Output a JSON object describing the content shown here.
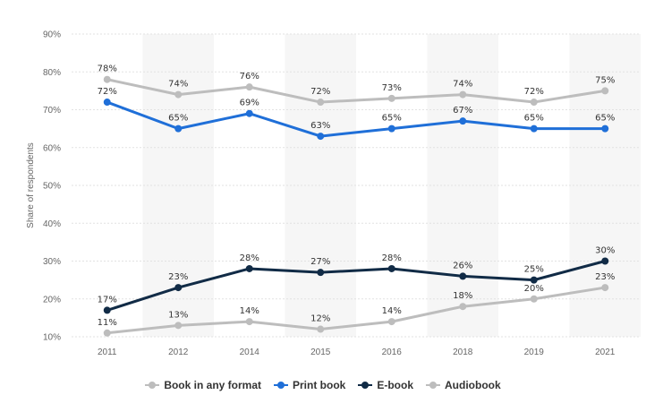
{
  "chart_data": {
    "type": "line",
    "title": "",
    "xlabel": "",
    "ylabel": "Share of respondents",
    "categories": [
      "2011",
      "2012",
      "2014",
      "2015",
      "2016",
      "2018",
      "2019",
      "2021"
    ],
    "ylim": [
      10,
      90
    ],
    "yticks": [
      "10%",
      "20%",
      "30%",
      "40%",
      "50%",
      "60%",
      "70%",
      "80%",
      "90%"
    ],
    "grid": true,
    "legend_position": "bottom",
    "series": [
      {
        "name": "Book in any format",
        "color": "#bdbdbd",
        "values": [
          78,
          74,
          76,
          72,
          73,
          74,
          72,
          75
        ],
        "labels": [
          "78%",
          "74%",
          "76%",
          "72%",
          "73%",
          "74%",
          "72%",
          "75%"
        ]
      },
      {
        "name": "Print book",
        "color": "#1f6fd8",
        "values": [
          72,
          65,
          69,
          63,
          65,
          67,
          65,
          65
        ],
        "labels": [
          "72%",
          "65%",
          "69%",
          "63%",
          "65%",
          "67%",
          "65%",
          "65%"
        ]
      },
      {
        "name": "E-book",
        "color": "#112b46",
        "values": [
          17,
          23,
          28,
          27,
          28,
          26,
          25,
          30
        ],
        "labels": [
          "17%",
          "23%",
          "28%",
          "27%",
          "28%",
          "26%",
          "25%",
          "30%"
        ]
      },
      {
        "name": "Audiobook",
        "color": "#bdbdbd",
        "values": [
          11,
          13,
          14,
          12,
          14,
          18,
          20,
          23
        ],
        "labels": [
          "11%",
          "13%",
          "14%",
          "12%",
          "14%",
          "18%",
          "20%",
          "23%"
        ]
      }
    ]
  }
}
